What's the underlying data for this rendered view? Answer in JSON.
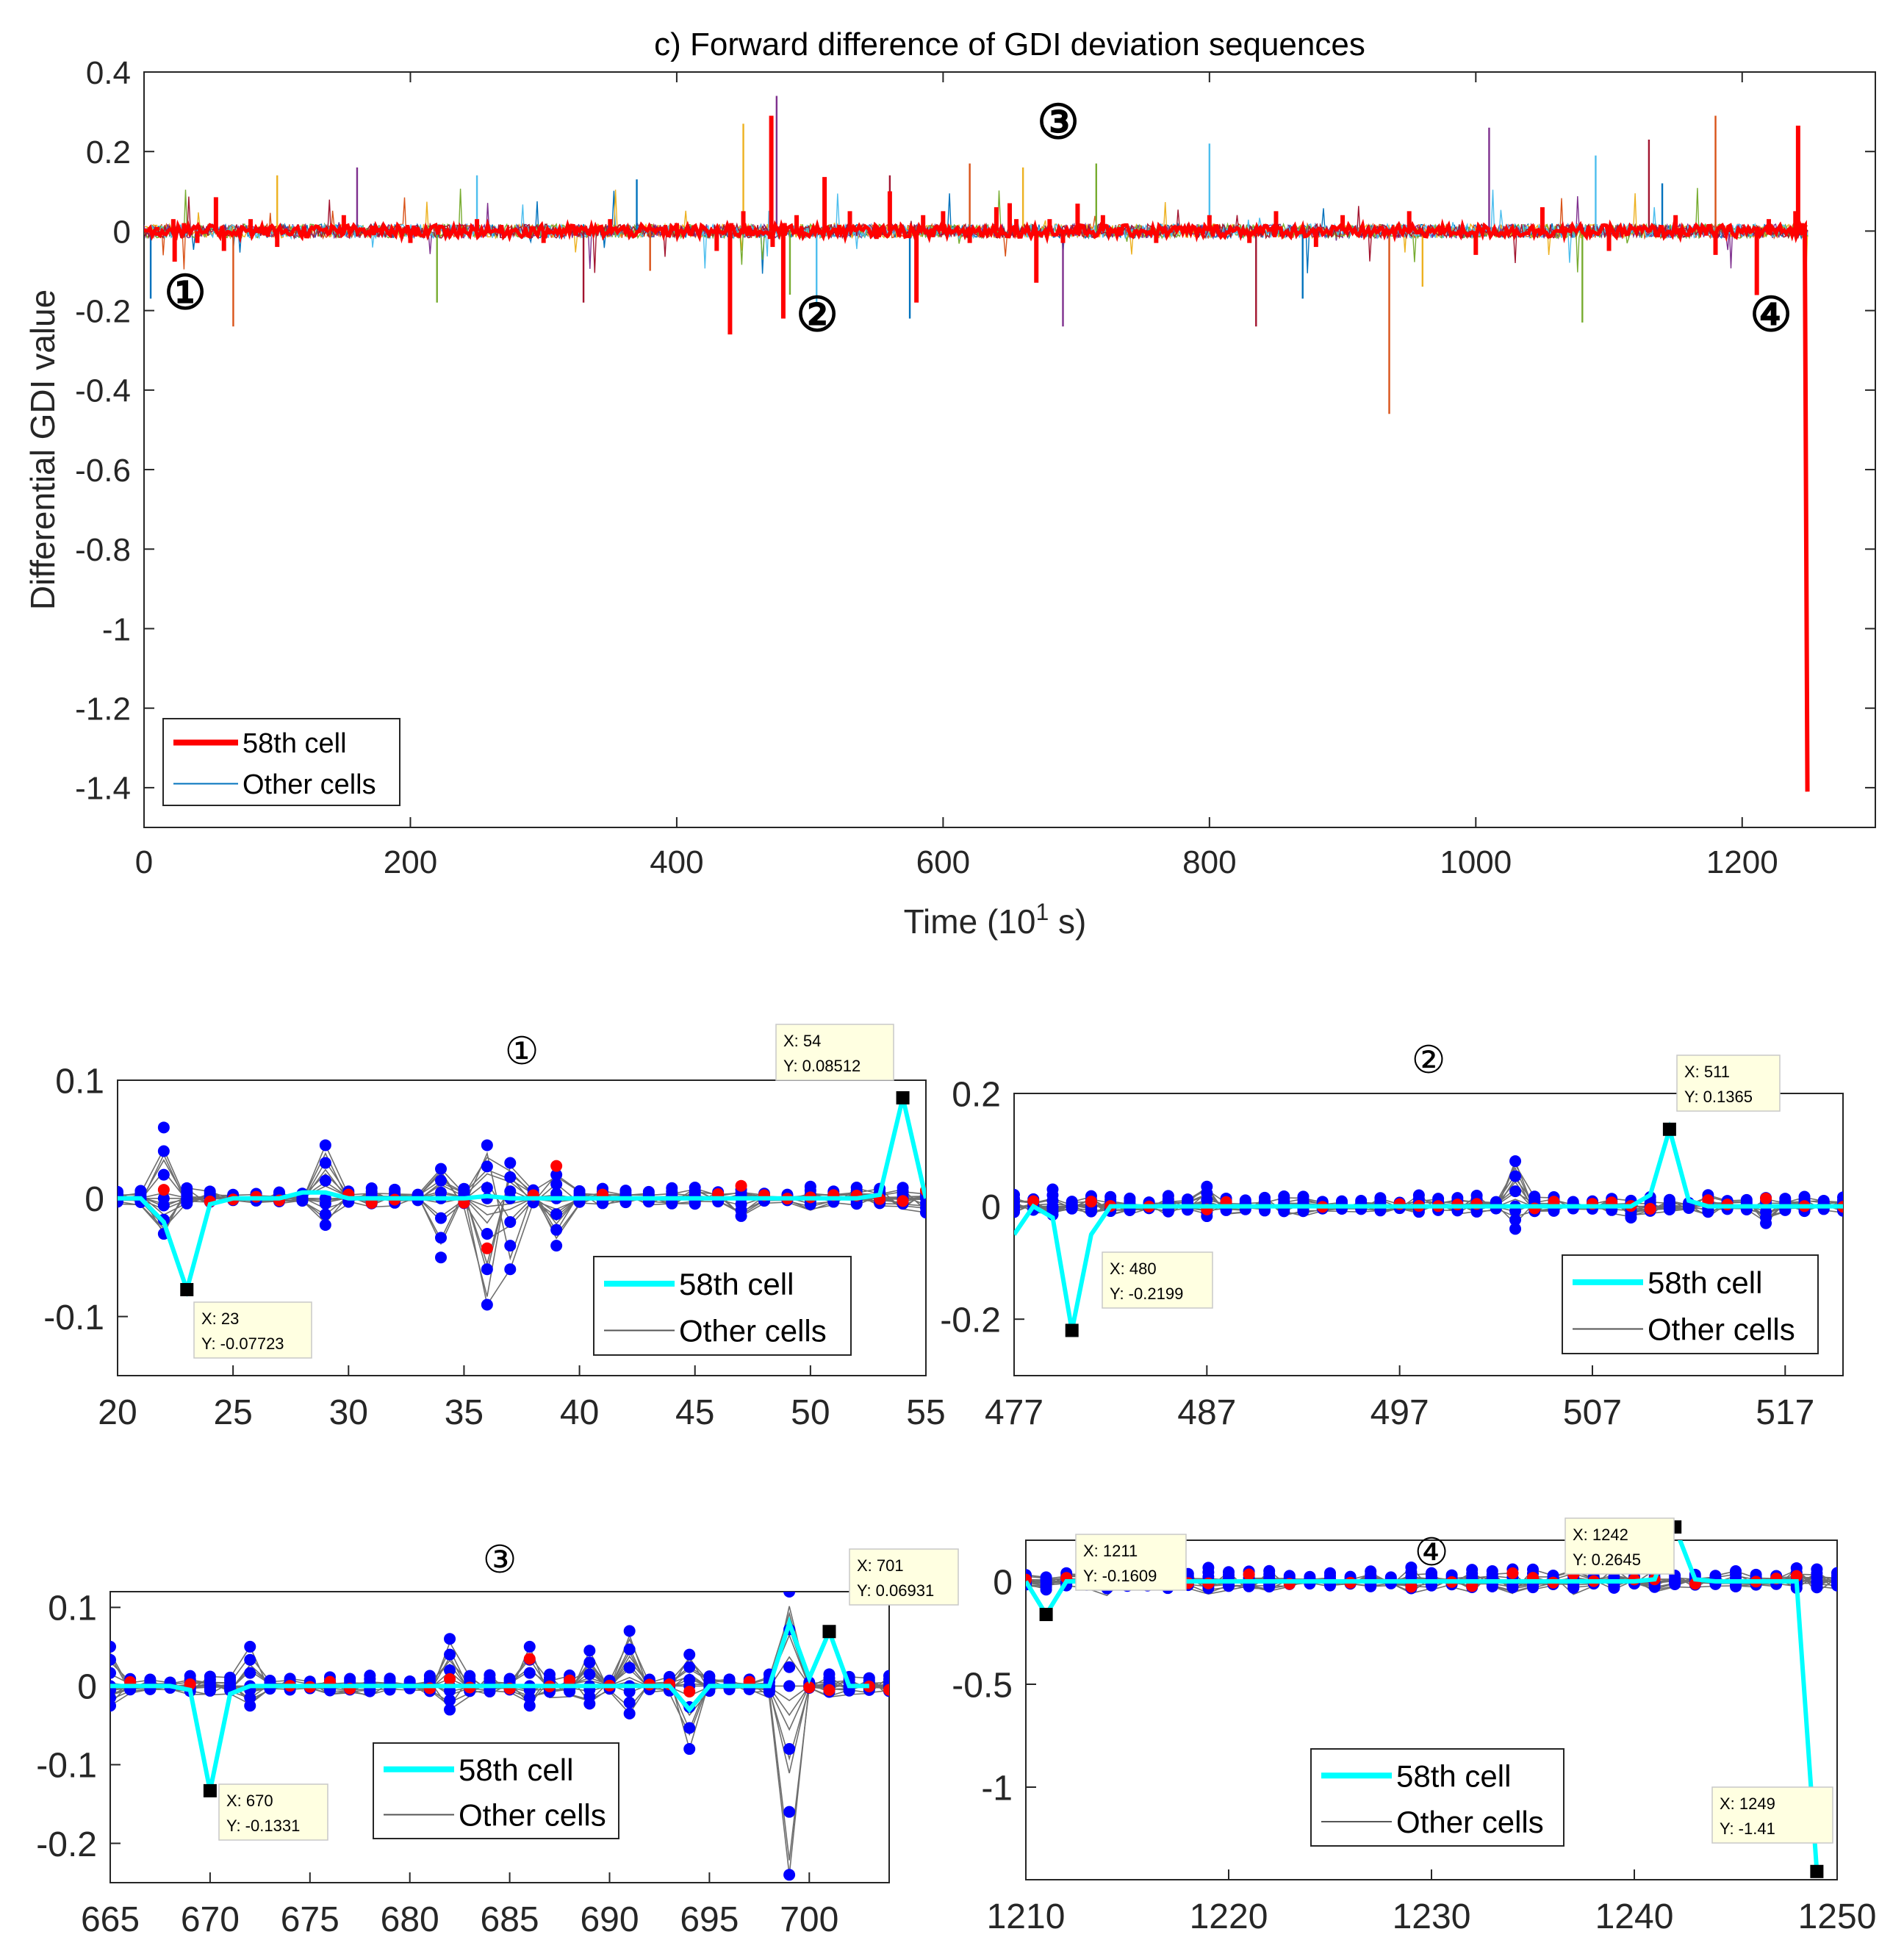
{
  "chart_data": [
    {
      "id": "main",
      "type": "line",
      "title": "c) Forward difference of GDI deviation sequences",
      "xlabel": "Time (10",
      "xlabel_sup": "1",
      "xlabel_suffix": " s)",
      "ylabel": "Differential GDI value",
      "xlim": [
        0,
        1300
      ],
      "ylim": [
        -1.5,
        0.4
      ],
      "xticks": [
        0,
        200,
        400,
        600,
        800,
        1000,
        1200
      ],
      "yticks": [
        0.4,
        0.2,
        0,
        -0.2,
        -0.4,
        -0.6,
        -0.8,
        -1,
        -1.2,
        -1.4
      ],
      "legend": {
        "position": "bottom-left",
        "entries": [
          "58th cell",
          "Other cells"
        ]
      },
      "series": [
        {
          "name": "58th cell",
          "color": "#ff0000",
          "x": [
            0,
            10,
            22,
            23,
            30,
            40,
            54,
            60,
            80,
            100,
            150,
            200,
            250,
            300,
            350,
            400,
            430,
            440,
            441,
            450,
            470,
            471,
            472,
            480,
            481,
            490,
            511,
            530,
            550,
            560,
            580,
            585,
            600,
            620,
            640,
            650,
            655,
            670,
            680,
            690,
            701,
            720,
            760,
            800,
            830,
            850,
            880,
            900,
            950,
            1000,
            1050,
            1100,
            1150,
            1180,
            1211,
            1220,
            1240,
            1242,
            1245,
            1249
          ],
          "y": [
            0,
            0.01,
            0.03,
            -0.077,
            0.02,
            -0.03,
            0.085,
            -0.05,
            0.03,
            -0.04,
            0.04,
            -0.03,
            0.03,
            -0.03,
            0.03,
            0.02,
            -0.05,
            -0.26,
            0.02,
            0.05,
            -0.02,
            0.29,
            -0.04,
            -0.22,
            0.02,
            0.04,
            0.136,
            0.05,
            -0.02,
            0.1,
            -0.18,
            0.04,
            0.05,
            -0.03,
            0.06,
            0.07,
            0.03,
            -0.13,
            0.03,
            -0.03,
            0.069,
            0.04,
            -0.03,
            0.04,
            -0.03,
            0.05,
            -0.04,
            0.04,
            0.05,
            -0.06,
            0.06,
            -0.05,
            0.04,
            -0.06,
            -0.161,
            0.03,
            0.05,
            0.265,
            0.02,
            -1.41
          ]
        },
        {
          "name": "Other cells",
          "color": "#0072bd",
          "x": [
            5,
            67,
            100,
            160,
            220,
            250,
            330,
            370,
            380,
            450,
            475,
            485,
            505,
            560,
            575,
            620,
            660,
            690,
            715,
            800,
            835,
            870,
            935,
            960,
            1010,
            1080,
            1090,
            1130,
            1140,
            1180
          ],
          "y": [
            -0.17,
            -0.24,
            0.14,
            0.16,
            -0.18,
            0.14,
            -0.18,
            0.13,
            -0.1,
            0.27,
            0.34,
            -0.16,
            -0.18,
            0.14,
            -0.22,
            0.17,
            0.16,
            -0.24,
            0.17,
            0.22,
            -0.24,
            -0.17,
            -0.46,
            -0.14,
            0.26,
            -0.23,
            0.19,
            0.23,
            0.12,
            0.29
          ]
        }
      ],
      "annotations": [
        "①",
        "②",
        "③",
        "④"
      ]
    },
    {
      "id": "zoom1",
      "type": "line",
      "title": "①",
      "xlim": [
        20,
        55
      ],
      "ylim": [
        -0.15,
        0.1
      ],
      "xticks": [
        20,
        25,
        30,
        35,
        40,
        45,
        50,
        55
      ],
      "yticks": [
        0.1,
        0,
        -0.1
      ],
      "ytick_labels": [
        "0.1",
        "0",
        "-0.1"
      ],
      "legend": {
        "position": "bottom-right",
        "entries": [
          "58th cell",
          "Other cells"
        ]
      },
      "series": [
        {
          "name": "58th cell",
          "color": "#00ffff",
          "x": [
            20,
            21,
            22,
            23,
            24,
            25,
            26,
            27,
            28,
            29,
            30,
            31,
            32,
            33,
            34,
            35,
            36,
            37,
            38,
            39,
            40,
            41,
            42,
            43,
            44,
            45,
            46,
            47,
            48,
            49,
            50,
            51,
            52,
            53,
            54,
            55
          ],
          "y": [
            0,
            0,
            -0.02,
            -0.07723,
            -0.005,
            0,
            0,
            0,
            0.005,
            0.005,
            0,
            0,
            0,
            0,
            0,
            0,
            0.002,
            0,
            0,
            0,
            0,
            0,
            0,
            0,
            0,
            0,
            0,
            0,
            0,
            0,
            0,
            0,
            0,
            0.003,
            0.08512,
            0
          ]
        },
        {
          "name": "Other cells",
          "color": "#555555",
          "x": [
            22,
            29,
            34,
            36,
            37,
            39,
            47,
            55
          ],
          "y": [
            0.06,
            0.045,
            -0.05,
            -0.09,
            -0.06,
            -0.04,
            -0.015,
            -0.012
          ]
        }
      ],
      "datatips": [
        {
          "x_label": "X: 23",
          "y_label": "Y: -0.07723",
          "x": 23,
          "y": -0.07723
        },
        {
          "x_label": "X: 54",
          "y_label": "Y: 0.08512",
          "x": 54,
          "y": 0.08512
        }
      ]
    },
    {
      "id": "zoom2",
      "type": "line",
      "title": "②",
      "xlim": [
        477,
        520
      ],
      "ylim": [
        -0.3,
        0.2
      ],
      "xticks": [
        477,
        487,
        497,
        507,
        517
      ],
      "yticks": [
        0.2,
        0,
        -0.2
      ],
      "ytick_labels": [
        "0.2",
        "0",
        "-0.2"
      ],
      "legend": {
        "position": "bottom-right",
        "entries": [
          "58th cell",
          "Other cells"
        ]
      },
      "series": [
        {
          "name": "58th cell",
          "color": "#00ffff",
          "x": [
            477,
            478,
            479,
            480,
            481,
            482,
            485,
            490,
            495,
            500,
            505,
            509,
            510,
            511,
            512,
            513,
            515,
            520
          ],
          "y": [
            -0.05,
            0,
            -0.02,
            -0.2199,
            -0.05,
            0,
            0,
            0,
            0,
            0,
            0,
            0,
            0.02,
            0.1365,
            0.01,
            0,
            0,
            0
          ]
        },
        {
          "name": "Other cells",
          "color": "#555555",
          "x": [
            479,
            487,
            503,
            509,
            516
          ],
          "y": [
            0.03,
            0.035,
            0.08,
            -0.02,
            -0.03
          ]
        }
      ],
      "datatips": [
        {
          "x_label": "X: 480",
          "y_label": "Y: -0.2199",
          "x": 480,
          "y": -0.2199
        },
        {
          "x_label": "X: 511",
          "y_label": "Y: 0.1365",
          "x": 511,
          "y": 0.1365
        }
      ]
    },
    {
      "id": "zoom3",
      "type": "line",
      "title": "③",
      "xlim": [
        665,
        704
      ],
      "ylim": [
        -0.25,
        0.12
      ],
      "xticks": [
        665,
        670,
        675,
        680,
        685,
        690,
        695,
        700
      ],
      "yticks": [
        0.1,
        0,
        -0.1,
        -0.2
      ],
      "ytick_labels": [
        "0.1",
        "0",
        "-0.1",
        "-0.2"
      ],
      "legend": {
        "position": "bottom-center",
        "entries": [
          "58th cell",
          "Other cells"
        ]
      },
      "series": [
        {
          "name": "58th cell",
          "color": "#00ffff",
          "x": [
            665,
            666,
            667,
            668,
            669,
            670,
            671,
            672,
            675,
            680,
            685,
            690,
            693,
            694,
            695,
            697,
            698,
            699,
            700,
            701,
            702,
            703
          ],
          "y": [
            0,
            0,
            0,
            0,
            -0.005,
            -0.1331,
            -0.01,
            0,
            0,
            0,
            0,
            0,
            0,
            -0.03,
            0,
            0,
            0,
            0.08,
            0.01,
            0.06931,
            0,
            0
          ]
        },
        {
          "name": "Other cells",
          "color": "#555555",
          "x": [
            665,
            672,
            682,
            686,
            689,
            691,
            694,
            699
          ],
          "y": [
            0.05,
            0.05,
            0.06,
            0.05,
            0.045,
            0.07,
            -0.08,
            -0.24
          ]
        }
      ],
      "datatips": [
        {
          "x_label": "X: 670",
          "y_label": "Y: -0.1331",
          "x": 670,
          "y": -0.1331
        },
        {
          "x_label": "X: 701",
          "y_label": "Y: 0.06931",
          "x": 701,
          "y": 0.06931
        }
      ]
    },
    {
      "id": "zoom4",
      "type": "line",
      "title": "④",
      "xlim": [
        1210,
        1250
      ],
      "ylim": [
        -1.45,
        0.2
      ],
      "xticks": [
        1210,
        1220,
        1230,
        1240,
        1250
      ],
      "yticks": [
        0,
        -0.5,
        -1
      ],
      "ytick_labels": [
        "0",
        "-0.5",
        "-1"
      ],
      "legend": {
        "position": "bottom-left",
        "entries": [
          "58th cell",
          "Other cells"
        ]
      },
      "series": [
        {
          "name": "58th cell",
          "color": "#00ffff",
          "x": [
            1210,
            1211,
            1212,
            1215,
            1220,
            1225,
            1230,
            1235,
            1240,
            1241,
            1242,
            1243,
            1244,
            1245,
            1246,
            1247,
            1248,
            1249
          ],
          "y": [
            0,
            -0.1609,
            0,
            0,
            0,
            0,
            0,
            0,
            0,
            0.01,
            0.2645,
            0.01,
            0,
            0,
            0,
            0,
            0,
            -1.41
          ]
        },
        {
          "name": "Other cells",
          "color": "#555555",
          "x": [
            1211,
            1212,
            1233,
            1245
          ],
          "y": [
            -0.04,
            0.04,
            0.05,
            0.05
          ]
        }
      ],
      "datatips": [
        {
          "x_label": "X: 1211",
          "y_label": "Y: -0.1609",
          "x": 1211,
          "y": -0.1609
        },
        {
          "x_label": "X: 1242",
          "y_label": "Y: 0.2645",
          "x": 1242,
          "y": 0.2645
        },
        {
          "x_label": "X: 1249",
          "y_label": "Y: -1.41",
          "x": 1249,
          "y": -1.41
        }
      ]
    }
  ]
}
